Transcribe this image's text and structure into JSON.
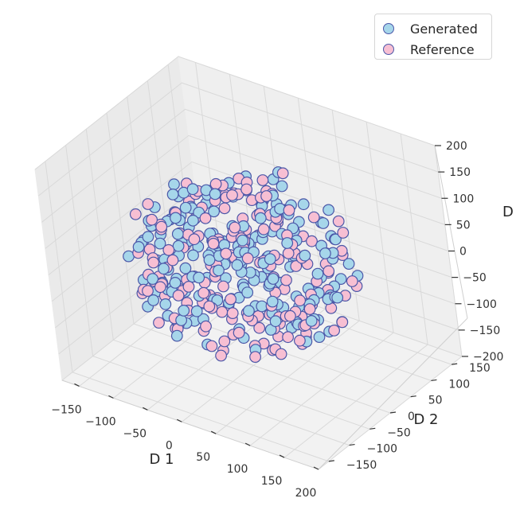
{
  "chart_data": {
    "type": "scatter",
    "projection": "3d",
    "xlabel": "D 1",
    "ylabel": "D 2",
    "zlabel": "D",
    "xlim": [
      -175,
      200
    ],
    "ylim": [
      -175,
      175
    ],
    "zlim": [
      -200,
      200
    ],
    "xticks": [
      -150,
      -100,
      -50,
      0,
      50,
      100,
      150,
      200
    ],
    "yticks": [
      -150,
      -100,
      -50,
      0,
      50,
      100,
      150
    ],
    "zticks": [
      -200,
      -150,
      -100,
      -50,
      0,
      50,
      100,
      150,
      200
    ],
    "grid": true,
    "legend_position": "top-right",
    "marker_edge_color": "#4b57a8",
    "series": [
      {
        "name": "Generated",
        "color": "#a6d6ea",
        "count": 210,
        "distribution": "roughly uniform inside a sphere of radius ~150"
      },
      {
        "name": "Reference",
        "color": "#f7bfd3",
        "count": 210,
        "distribution": "roughly uniform inside a sphere of radius ~150"
      }
    ]
  }
}
